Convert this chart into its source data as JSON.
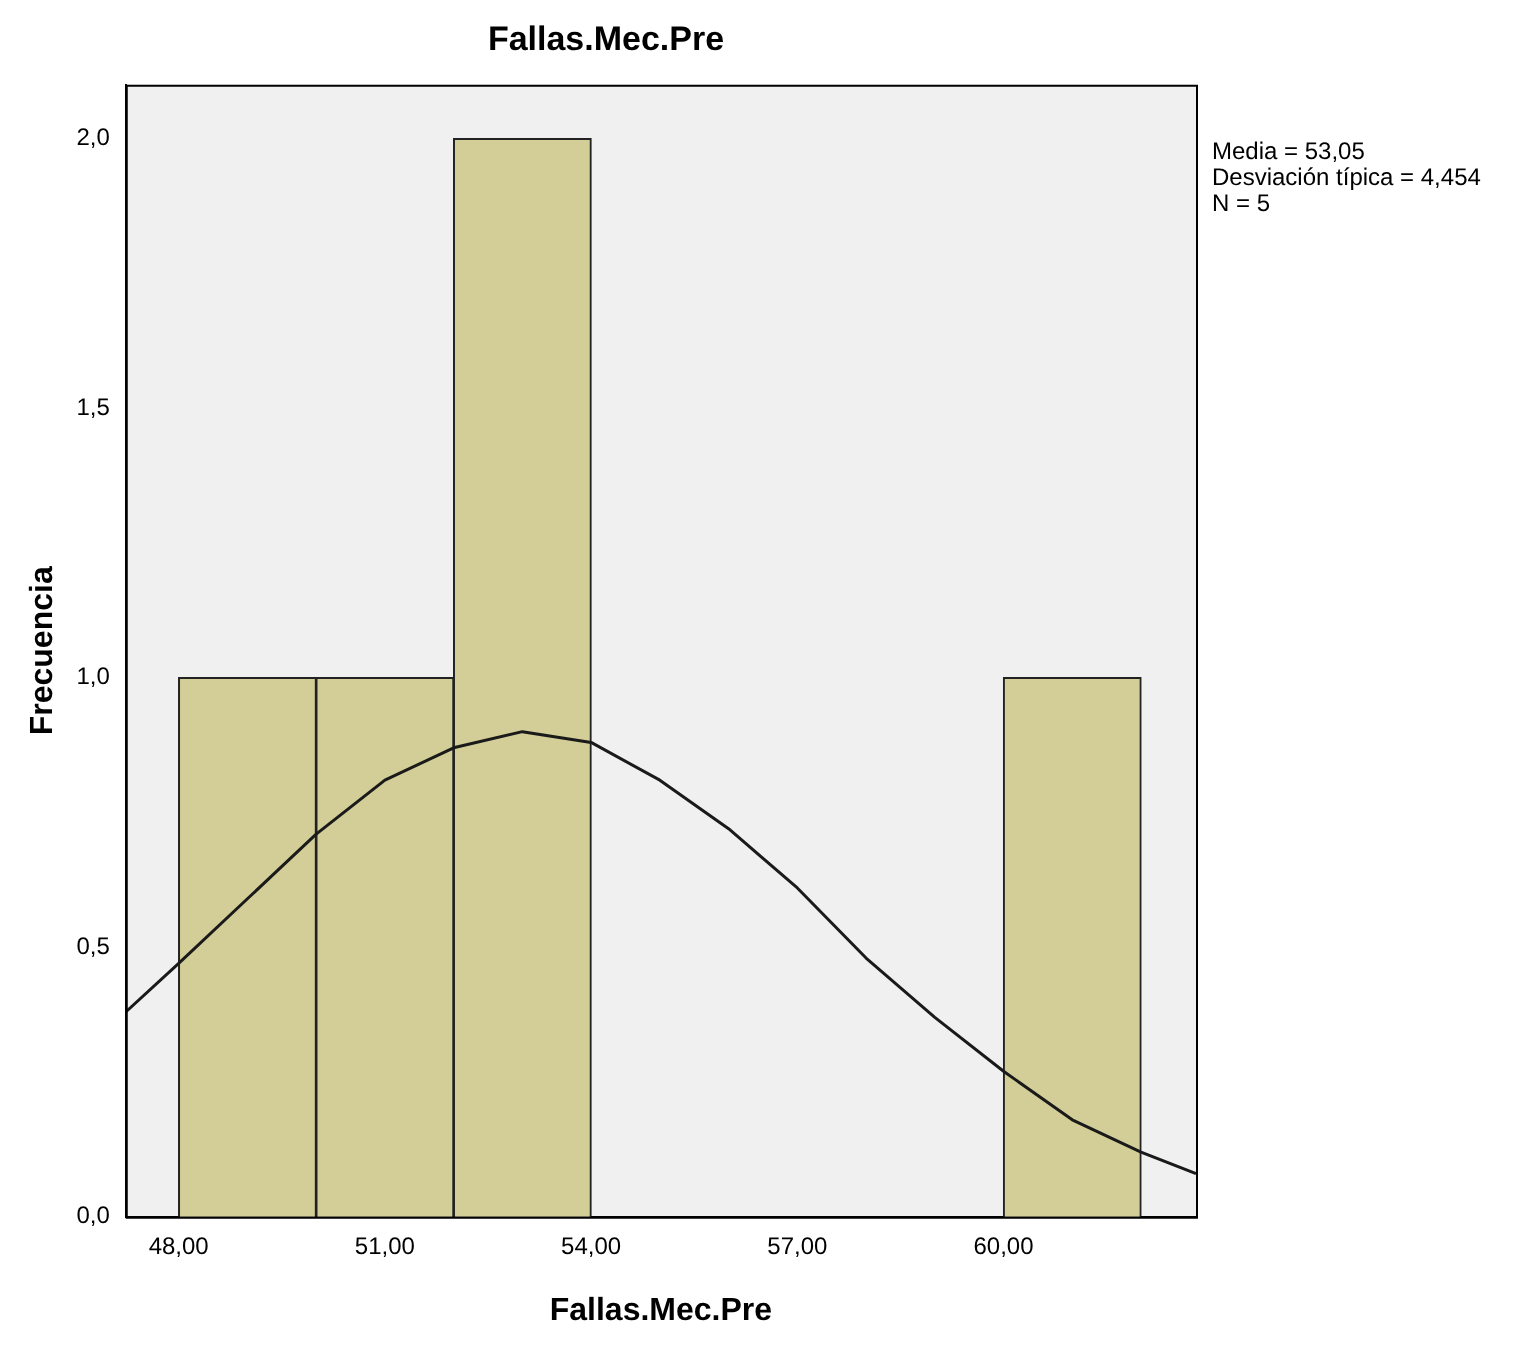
{
  "chart_data": {
    "type": "histogram",
    "title": "Fallas.Mec.Pre",
    "xlabel": "Fallas.Mec.Pre",
    "ylabel": "Frecuencia",
    "bins": [
      48,
      50,
      52,
      54,
      56,
      58,
      60,
      62
    ],
    "values": [
      1,
      1,
      2,
      0,
      0,
      0,
      1
    ],
    "color": "#d3ce97",
    "series": [
      {
        "type": "line",
        "color": "#1a1a1a",
        "x": [
          47.23,
          48,
          49,
          50,
          51,
          52,
          53,
          54,
          55,
          56,
          57,
          58,
          59,
          60,
          61,
          62,
          62.8
        ],
        "values": [
          0.38,
          0.47,
          0.59,
          0.71,
          0.81,
          0.87,
          0.9,
          0.88,
          0.81,
          0.72,
          0.61,
          0.48,
          0.37,
          0.27,
          0.18,
          0.12,
          0.08
        ]
      }
    ],
    "xlim": [
      47.23,
      62.8
    ],
    "xticks": [
      {
        "value": 48,
        "label": "48,00"
      },
      {
        "value": 51,
        "label": "51,00"
      },
      {
        "value": 54,
        "label": "54,00"
      },
      {
        "value": 57,
        "label": "57,00"
      },
      {
        "value": 60,
        "label": "60,00"
      }
    ],
    "ylim": [
      0,
      2.1
    ],
    "yticks": [
      {
        "value": 0,
        "label": "0,0"
      },
      {
        "value": 0.5,
        "label": "0,5"
      },
      {
        "value": 1,
        "label": "1,0"
      },
      {
        "value": 1.5,
        "label": "1,5"
      },
      {
        "value": 2,
        "label": "2,0"
      }
    ],
    "annotations": [
      "Media = 53,05",
      "Desviación típica = 4,454",
      "N = 5"
    ],
    "grid": false,
    "legend": false,
    "marker": "none",
    "line_style": "solid"
  }
}
